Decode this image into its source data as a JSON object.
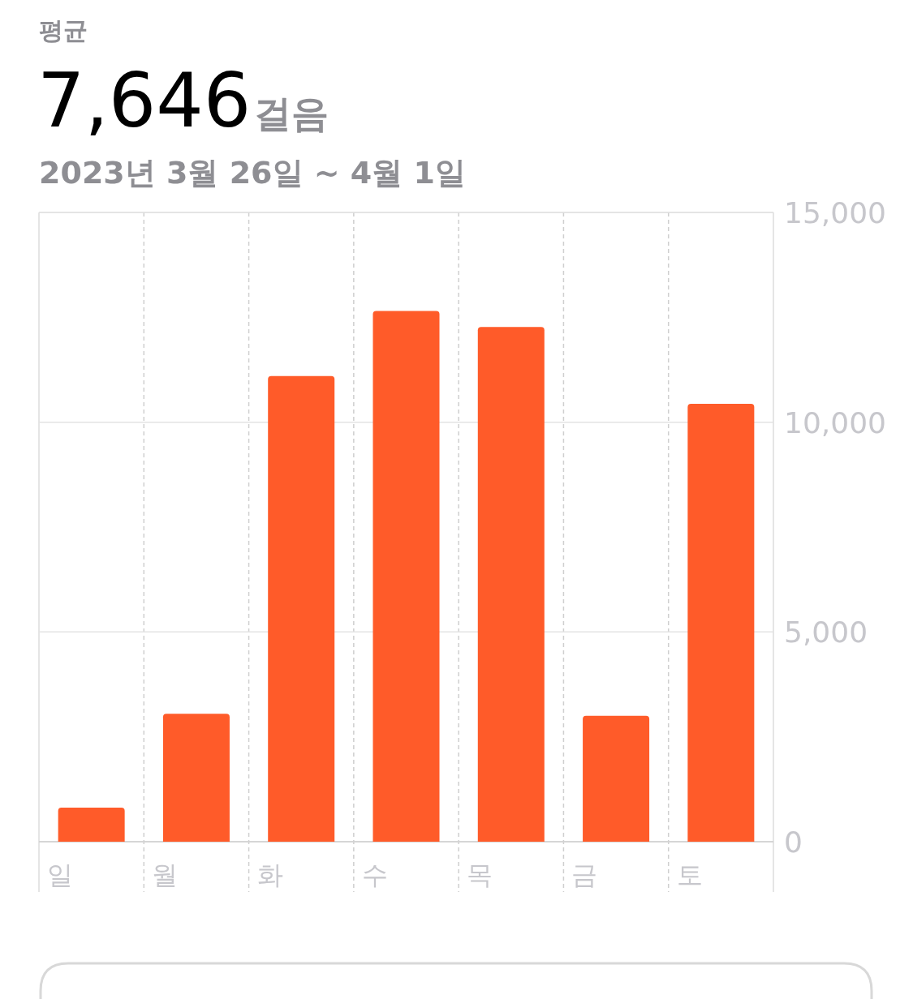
{
  "chart_data": {
    "type": "bar",
    "title": "7,646",
    "subtitle": "2023년 3월 26일 ~ 4월 1일",
    "annotations": [
      "평균",
      "걸음"
    ],
    "categories": [
      "일",
      "월",
      "화",
      "수",
      "목",
      "금",
      "토"
    ],
    "values": [
      810,
      3050,
      11100,
      12650,
      12270,
      3000,
      10440
    ],
    "color": "#ff5b29",
    "ylim": [
      0,
      15000
    ],
    "yticks": [
      {
        "value": 0,
        "label": "0"
      },
      {
        "value": 5000,
        "label": "5,000"
      },
      {
        "value": 10000,
        "label": "10,000"
      },
      {
        "value": 15000,
        "label": "15,000"
      }
    ],
    "grid": "y"
  }
}
